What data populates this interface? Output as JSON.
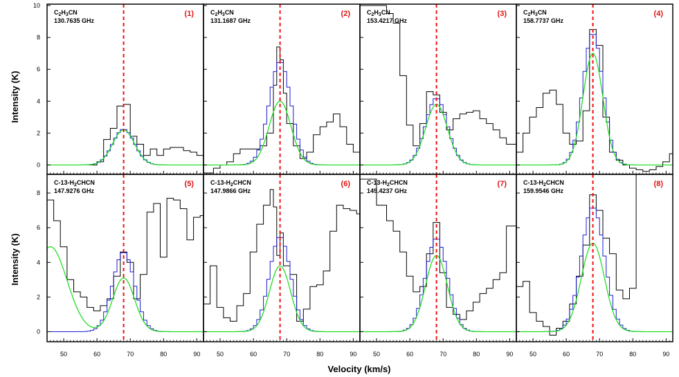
{
  "chart_data": {
    "type": "line",
    "xlabel": "Velocity (km/s)",
    "ylabel": "Intensity (K)",
    "vlsr": 68,
    "colors": {
      "observed": "#000000",
      "model_blue": "#1a1acc",
      "gaussian": "#22dd22",
      "vline": "#ee1111",
      "panel_label": "#dd1111"
    },
    "rows": [
      {
        "xlim": [
          45,
          92
        ],
        "ylim": [
          -0.5,
          10
        ],
        "xticks": [
          50,
          60,
          70,
          80,
          90
        ],
        "yticks": [
          0,
          2,
          4,
          6,
          8,
          10
        ]
      },
      {
        "xlim": [
          45,
          92
        ],
        "ylim": [
          -0.5,
          9
        ],
        "xticks": [
          50,
          60,
          70,
          80,
          90
        ],
        "yticks": [
          0,
          2,
          4,
          6,
          8
        ]
      }
    ],
    "panels": [
      {
        "label": "(1)",
        "molecule_prefix": "C",
        "molecule_sub": "2",
        "molecule_mid": "H",
        "molecule_sub2": "3",
        "molecule_suffix": "CN",
        "frequency": "130.7635 GHz",
        "row": 0,
        "col": 0,
        "gauss": {
          "amp": 2.2,
          "center": 68,
          "sigma": 3.3
        },
        "blue_peak": 2.25,
        "obs_x": [
          45,
          50,
          53,
          56,
          58,
          60,
          62,
          64,
          66,
          68,
          70,
          72,
          74,
          76,
          78,
          80,
          82,
          84,
          86,
          88,
          90,
          92
        ],
        "obs_y": [
          0,
          0,
          0,
          0,
          0,
          0.2,
          1.6,
          2.3,
          3.7,
          3.8,
          1.8,
          1.3,
          0.6,
          1.0,
          0.6,
          1.0,
          1.1,
          1.1,
          0.9,
          0.8,
          0.6,
          0.5
        ]
      },
      {
        "label": "(2)",
        "molecule_prefix": "C",
        "molecule_sub": "2",
        "molecule_mid": "H",
        "molecule_sub2": "3",
        "molecule_suffix": "CN",
        "frequency": "131.1687 GHz",
        "row": 0,
        "col": 1,
        "gauss": {
          "amp": 4.0,
          "center": 68,
          "sigma": 3.3
        },
        "blue_peak": 6.5,
        "obs_x": [
          45,
          48,
          50,
          52,
          54,
          56,
          58,
          60,
          62,
          64,
          66,
          67,
          68,
          69,
          70,
          72,
          74,
          76,
          78,
          80,
          82,
          84,
          86,
          88,
          90,
          92
        ],
        "obs_y": [
          -0.5,
          -0.2,
          0,
          0.2,
          0.7,
          1.0,
          1.0,
          1.0,
          1.2,
          2.0,
          5.0,
          7.4,
          6.6,
          4.5,
          2.6,
          1.2,
          0.4,
          0.8,
          1.9,
          2.4,
          2.7,
          3.2,
          2.4,
          1.3,
          0.8,
          0.6
        ]
      },
      {
        "label": "(3)",
        "molecule_prefix": "C",
        "molecule_sub": "2",
        "molecule_mid": "H",
        "molecule_sub2": "3",
        "molecule_suffix": "CN",
        "frequency": "153.4217 GHz",
        "row": 0,
        "col": 2,
        "gauss": {
          "amp": 3.8,
          "center": 68,
          "sigma": 3.3
        },
        "blue_peak": 4.2,
        "obs_x": [
          45,
          50,
          53,
          55,
          57,
          59,
          61,
          63,
          65,
          67,
          69,
          71,
          73,
          75,
          77,
          79,
          81,
          83,
          85,
          87,
          89,
          91
        ],
        "obs_y": [
          10,
          10,
          9.5,
          8.9,
          5.6,
          2.5,
          1.2,
          2.6,
          4.6,
          4.4,
          3.3,
          2.2,
          2.9,
          3.2,
          3.3,
          3.4,
          2.9,
          2.6,
          2.2,
          1.7,
          1.3,
          1.3
        ]
      },
      {
        "label": "(4)",
        "molecule_prefix": "C",
        "molecule_sub": "2",
        "molecule_mid": "H",
        "molecule_sub2": "3",
        "molecule_suffix": "CN",
        "frequency": "158.7737 GHz",
        "row": 0,
        "col": 3,
        "gauss": {
          "amp": 7.0,
          "center": 68,
          "sigma": 3.0
        },
        "blue_peak": 8.3,
        "obs_x": [
          45,
          47,
          49,
          51,
          53,
          55,
          57,
          59,
          61,
          63,
          65,
          67,
          69,
          71,
          73,
          75,
          77,
          79,
          81,
          83,
          85,
          87,
          89,
          91
        ],
        "obs_y": [
          0.8,
          2.0,
          3.0,
          3.6,
          4.5,
          4.7,
          3.8,
          2.0,
          1.3,
          1.5,
          3.4,
          8.5,
          7.5,
          3.0,
          0.8,
          0.3,
          0,
          -0.2,
          -0.3,
          -0.4,
          -0.3,
          -0.1,
          0.2,
          0.7
        ]
      },
      {
        "label": "(5)",
        "molecule_prefix": "C-13-H",
        "molecule_sub": "2",
        "molecule_mid": "CHCN",
        "molecule_sub2": "",
        "molecule_suffix": "",
        "frequency": "147.9276 GHz",
        "row": 1,
        "col": 0,
        "gauss": {
          "amp": 3.1,
          "center": 68,
          "sigma": 3.3,
          "amp2": 4.9,
          "center2": 46,
          "sigma2": 5.0
        },
        "blue_peak": 4.6,
        "obs_x": [
          45,
          47,
          49,
          51,
          53,
          55,
          57,
          59,
          61,
          63,
          65,
          67,
          69,
          71,
          73,
          75,
          77,
          79,
          81,
          83,
          85,
          87,
          89,
          91
        ],
        "obs_y": [
          7.6,
          6.4,
          4.9,
          3.0,
          2.3,
          2.0,
          1.4,
          1.2,
          1.5,
          1.9,
          3.2,
          4.6,
          4.0,
          1.9,
          3.3,
          6.9,
          7.4,
          4.3,
          7.7,
          7.6,
          7.1,
          5.3,
          6.6,
          6.7
        ]
      },
      {
        "label": "(6)",
        "molecule_prefix": "C-13-H",
        "molecule_sub": "2",
        "molecule_mid": "CHCN",
        "molecule_sub2": "",
        "molecule_suffix": "",
        "frequency": "147.9866 GHz",
        "row": 1,
        "col": 1,
        "gauss": {
          "amp": 3.8,
          "center": 68,
          "sigma": 3.2
        },
        "blue_peak": 5.5,
        "obs_x": [
          45,
          47,
          49,
          51,
          53,
          55,
          57,
          59,
          61,
          63,
          65,
          66,
          67,
          68,
          69,
          71,
          73,
          75,
          77,
          79,
          81,
          83,
          85,
          87,
          89,
          91
        ],
        "obs_y": [
          1.6,
          3.8,
          1.4,
          0.8,
          0.6,
          1.5,
          2.2,
          4.6,
          6.2,
          7.3,
          8.2,
          7.2,
          4.4,
          5.7,
          3.8,
          3.3,
          0.6,
          1.3,
          2.6,
          2.7,
          3.5,
          5.8,
          7.3,
          7.1,
          7.0,
          6.8
        ]
      },
      {
        "label": "(7)",
        "molecule_prefix": "C-13-H",
        "molecule_sub": "2",
        "molecule_mid": "CHCN",
        "molecule_sub2": "",
        "molecule_suffix": "",
        "frequency": "149.4237 GHz",
        "row": 1,
        "col": 2,
        "gauss": {
          "amp": 4.4,
          "center": 68,
          "sigma": 3.3
        },
        "blue_peak": 5.4,
        "obs_x": [
          45,
          50,
          53,
          55,
          57,
          59,
          61,
          63,
          65,
          67,
          69,
          71,
          73,
          75,
          77,
          79,
          81,
          83,
          85,
          87,
          89,
          91
        ],
        "obs_y": [
          8.8,
          7.3,
          6.4,
          5.8,
          4.6,
          3.2,
          2.3,
          2.6,
          4.5,
          6.3,
          3.4,
          1.4,
          1.0,
          0.7,
          1.2,
          1.7,
          2.2,
          2.5,
          3.0,
          3.4,
          6.1,
          6.1
        ]
      },
      {
        "label": "(8)",
        "molecule_prefix": "C-13-H",
        "molecule_sub": "2",
        "molecule_mid": "CHCN",
        "molecule_sub2": "",
        "molecule_suffix": "",
        "frequency": "159.9546 GHz",
        "row": 1,
        "col": 3,
        "gauss": {
          "amp": 5.1,
          "center": 68,
          "sigma": 3.5
        },
        "blue_peak": 7.2,
        "obs_x": [
          45,
          47,
          49,
          51,
          53,
          55,
          57,
          59,
          61,
          63,
          65,
          67,
          69,
          71,
          73,
          75,
          77,
          79,
          81,
          83,
          85,
          87,
          89,
          91
        ],
        "obs_y": [
          2.6,
          2.9,
          1.1,
          0.6,
          0.3,
          -0.2,
          0.2,
          0.6,
          1.6,
          3.2,
          5.0,
          7.9,
          7.0,
          5.4,
          4.5,
          2.4,
          1.9,
          2.5,
          9.2,
          9.4,
          9.5,
          9.5,
          9.6,
          9.7
        ]
      }
    ]
  }
}
